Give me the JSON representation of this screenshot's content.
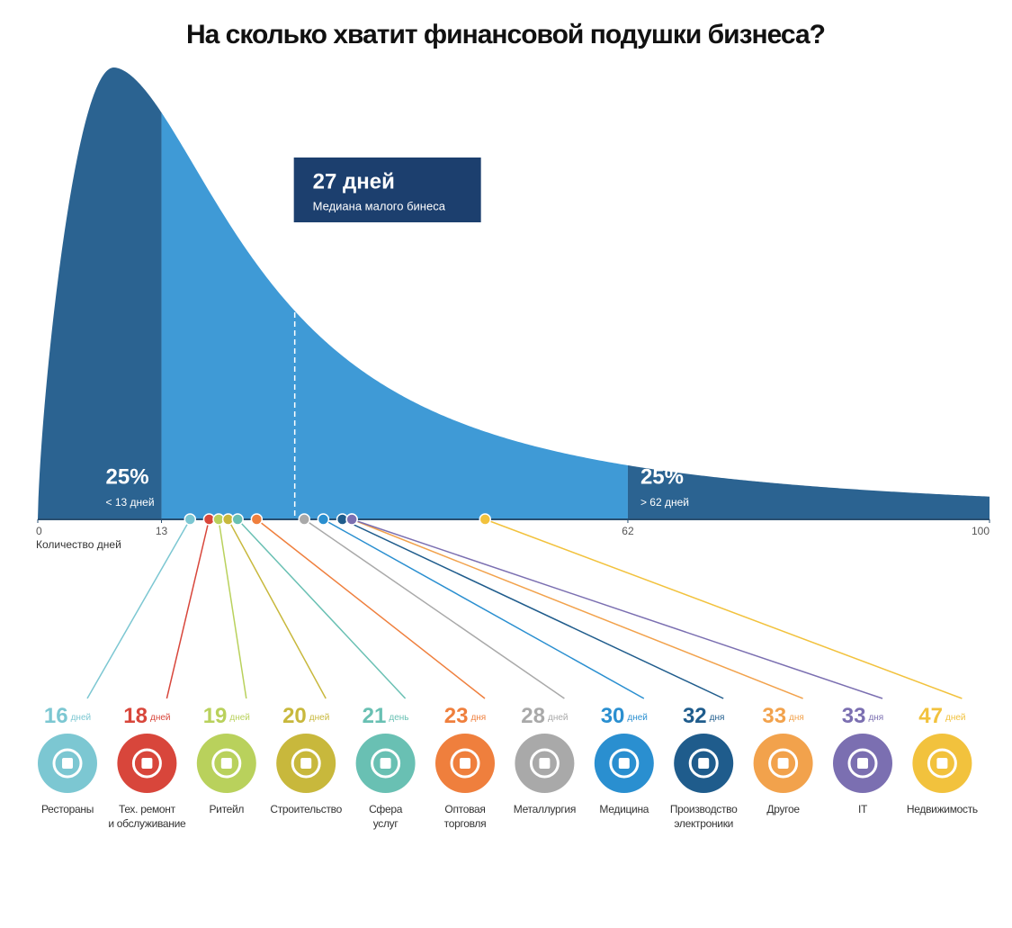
{
  "chart_data": {
    "type": "distribution",
    "title": "На сколько хватит финансовой подушки бизнеса?",
    "xlabel": "Количество дней",
    "xlim": [
      0,
      100
    ],
    "xticks": [
      0,
      13,
      62,
      100
    ],
    "region_colors": [
      "#2b6391",
      "#3f9ad6",
      "#2b6391"
    ],
    "regions": [
      {
        "label": "25%",
        "text": "< 13 дней"
      },
      {
        "label": "25%",
        "text": "> 62 дней"
      }
    ],
    "median": {
      "value": 27,
      "label": "27 дней",
      "caption": "Медиана малого бинеса"
    },
    "categories": [
      "Рестораны",
      "Тех. ремонт\nи обслуживание",
      "Ритейл",
      "Строительство",
      "Сфера\nуслуг",
      "Оптовая\nторговля",
      "Металлургия",
      "Медицина",
      "Производство\nэлектроники",
      "Другое",
      "IT",
      "Недвижимость"
    ],
    "values": [
      16,
      18,
      19,
      20,
      21,
      23,
      28,
      30,
      32,
      33,
      33,
      47
    ],
    "units": [
      "дней",
      "дней",
      "дней",
      "дней",
      "день",
      "дня",
      "дней",
      "дней",
      "дня",
      "дня",
      "дня",
      "дней"
    ],
    "colors": [
      "#7cc7d2",
      "#d8463b",
      "#b9d15c",
      "#c8b83c",
      "#69c0b3",
      "#ef7f3d",
      "#a9a9a9",
      "#2a8fd0",
      "#1f5c8c",
      "#f2a24c",
      "#7b6fb1",
      "#f2c23d"
    ]
  }
}
